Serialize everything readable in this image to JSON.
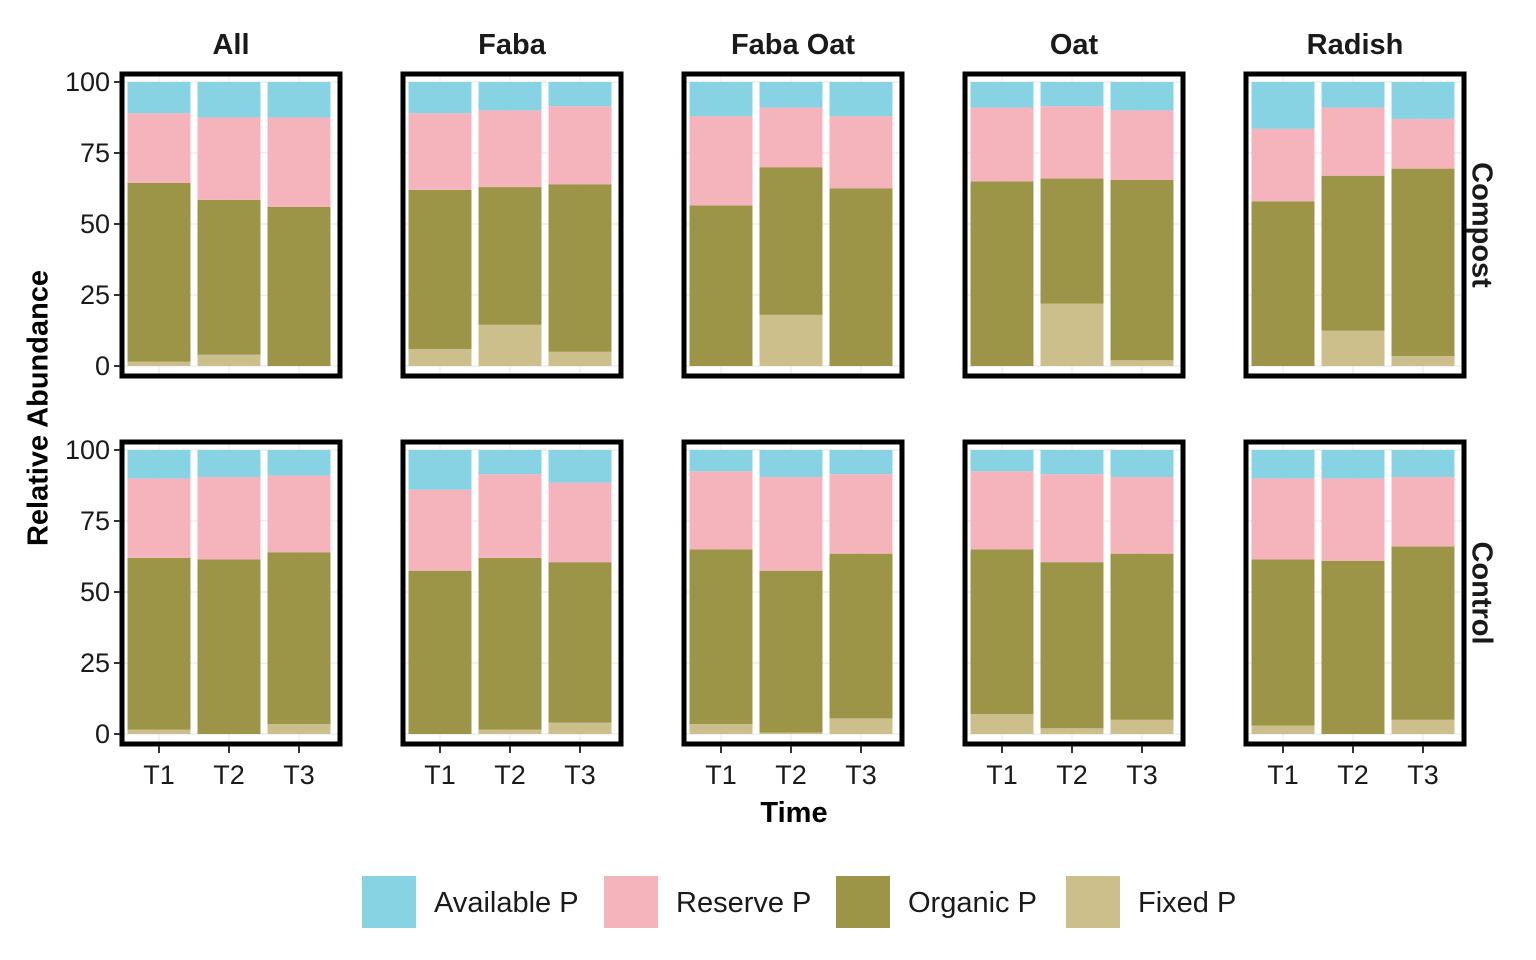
{
  "chart_data": {
    "type": "bar",
    "stacked": true,
    "xlabel": "Time",
    "ylabel": "Relative Abundance",
    "ylim": [
      0,
      100
    ],
    "yticks": [
      0,
      25,
      50,
      75,
      100
    ],
    "categories": [
      "T1",
      "T2",
      "T3"
    ],
    "facet_columns": [
      "All",
      "Faba",
      "Faba Oat",
      "Oat",
      "Radish"
    ],
    "facet_rows": [
      "Compost",
      "Control"
    ],
    "legend": {
      "position": "bottom"
    },
    "series": [
      {
        "name": "Available P",
        "color": "#87D3E3"
      },
      {
        "name": "Reserve P",
        "color": "#F5B3BC"
      },
      {
        "name": "Organic P",
        "color": "#9C9548"
      },
      {
        "name": "Fixed P",
        "color": "#CDBF8B"
      }
    ],
    "panels": {
      "Compost": {
        "All": {
          "T1": [
            11,
            24.5,
            63,
            1.5
          ],
          "T2": [
            12.5,
            29,
            54.5,
            4
          ],
          "T3": [
            12.5,
            31.5,
            56,
            0
          ]
        },
        "Faba": {
          "T1": [
            11,
            27,
            56,
            6
          ],
          "T2": [
            10,
            27,
            48.5,
            14.5
          ],
          "T3": [
            8.5,
            27.5,
            59,
            5
          ]
        },
        "Faba Oat": {
          "T1": [
            12,
            31.5,
            56.5,
            0
          ],
          "T2": [
            9,
            21,
            52,
            18
          ],
          "T3": [
            12,
            25.5,
            62.5,
            0
          ]
        },
        "Oat": {
          "T1": [
            9,
            26,
            65,
            0
          ],
          "T2": [
            8.5,
            25.5,
            44,
            22
          ],
          "T3": [
            10,
            24.5,
            63.5,
            2
          ]
        },
        "Radish": {
          "T1": [
            16.5,
            25.5,
            58,
            0
          ],
          "T2": [
            9,
            24,
            54.5,
            12.5
          ],
          "T3": [
            13,
            17.5,
            66,
            3.5
          ]
        }
      },
      "Control": {
        "All": {
          "T1": [
            10,
            28,
            60.5,
            1.5
          ],
          "T2": [
            9.5,
            29,
            61.5,
            0
          ],
          "T3": [
            9,
            27,
            60.5,
            3.5
          ]
        },
        "Faba": {
          "T1": [
            14,
            28.5,
            57.5,
            0
          ],
          "T2": [
            8.5,
            29.5,
            60.5,
            1.5
          ],
          "T3": [
            11.5,
            28,
            56.5,
            4
          ]
        },
        "Faba Oat": {
          "T1": [
            7.5,
            27.5,
            61.5,
            3.5
          ],
          "T2": [
            9.5,
            33,
            57,
            0.5
          ],
          "T3": [
            8.5,
            28,
            58,
            5.5
          ]
        },
        "Oat": {
          "T1": [
            7.5,
            27.5,
            58,
            7
          ],
          "T2": [
            8.5,
            31,
            58.5,
            2
          ],
          "T3": [
            9.5,
            27,
            58.5,
            5
          ]
        },
        "Radish": {
          "T1": [
            10,
            28.5,
            58.5,
            3
          ],
          "T2": [
            10,
            29,
            61,
            0
          ],
          "T3": [
            9.5,
            24.5,
            61,
            5
          ]
        }
      }
    }
  }
}
